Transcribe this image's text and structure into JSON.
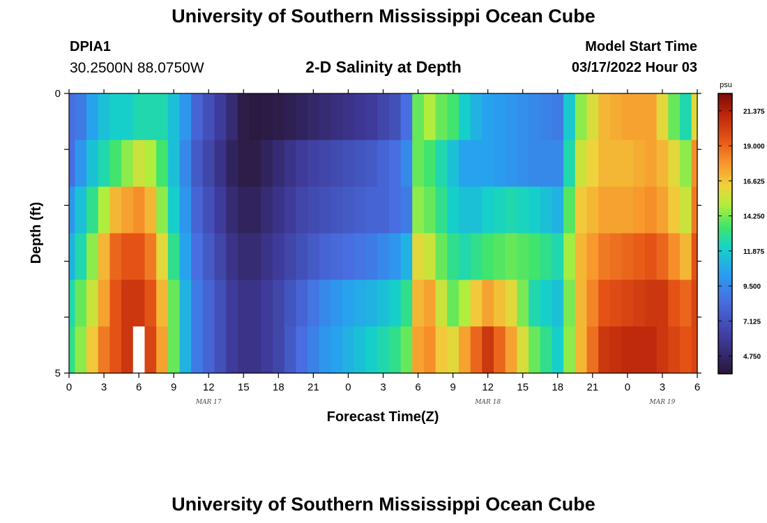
{
  "header": {
    "title": "University of Southern Mississippi Ocean Cube",
    "station_id": "DPIA1",
    "coordinates": "30.2500N  88.0750W",
    "chart_title": "2-D Salinity at Depth",
    "model_start_label": "Model Start Time",
    "model_start_value": "03/17/2022 Hour 03"
  },
  "footer": {
    "title": "University of Southern Mississippi Ocean Cube"
  },
  "chart_data": {
    "type": "heatmap",
    "title": "2-D Salinity at Depth",
    "xlabel": "Forecast Time(Z)",
    "ylabel": "Depth (ft)",
    "x_start_hour": 0,
    "x_end_hour": 54,
    "x_ticks": [
      "0",
      "3",
      "6",
      "9",
      "12",
      "15",
      "18",
      "21",
      "0",
      "3",
      "6",
      "9",
      "12",
      "15",
      "18",
      "21",
      "0",
      "3",
      "6"
    ],
    "date_labels": [
      {
        "label": "MAR 17",
        "hour": 12
      },
      {
        "label": "MAR 18",
        "hour": 36
      },
      {
        "label": "MAR 19",
        "hour": 51
      }
    ],
    "y_ticks": [
      "0",
      "5"
    ],
    "ylim": [
      0,
      5
    ],
    "depth_rows": [
      0,
      1,
      2,
      3,
      4,
      5
    ],
    "colorbar": {
      "unit": "psu",
      "min": 3.55,
      "max": 22.55,
      "ticks": [
        "21.375",
        "19.000",
        "16.625",
        "14.250",
        "11.875",
        "9.500",
        "7.125",
        "4.750"
      ]
    },
    "missing_data": [
      {
        "hour": 6,
        "row": 5
      }
    ],
    "salinity_keyframes": {
      "hours": [
        0,
        1,
        2,
        3,
        4,
        5,
        6,
        7,
        8,
        9,
        10,
        11,
        12,
        13,
        14,
        15,
        16,
        18,
        20,
        22,
        24,
        26,
        27,
        28,
        29,
        30,
        31,
        32,
        33,
        34,
        35,
        36,
        38,
        40,
        42,
        44,
        46,
        48,
        50,
        51,
        52,
        53,
        54
      ],
      "rows": [
        [
          8.5,
          9,
          10.5,
          11.5,
          12,
          12,
          12.5,
          12.5,
          12.5,
          11.5,
          10,
          8,
          7,
          6,
          5,
          4,
          3.8,
          4,
          4.5,
          5,
          5.5,
          6,
          6.5,
          7,
          8.5,
          14,
          15,
          14,
          13.5,
          12,
          11,
          10.5,
          10,
          9.5,
          9,
          14.5,
          17,
          17.5,
          17.5,
          16,
          14,
          12.5,
          16
        ],
        [
          8.5,
          10,
          11.5,
          12.5,
          13.5,
          14.5,
          15.5,
          15,
          13.5,
          11.5,
          9.5,
          7.5,
          6.5,
          5.5,
          4.5,
          4,
          4,
          5,
          6,
          6.5,
          7,
          7.5,
          8,
          8.5,
          9.5,
          14,
          13.5,
          12.5,
          11.5,
          10.5,
          10.5,
          10.5,
          10,
          9.5,
          9.5,
          15.5,
          17,
          17,
          17.5,
          17,
          16,
          14.5,
          18
        ],
        [
          10,
          11.5,
          13,
          15,
          17,
          17.5,
          18,
          17,
          14.5,
          12,
          10,
          8,
          7,
          6,
          5,
          4.5,
          4.5,
          5.5,
          6.5,
          7,
          7.5,
          8,
          8,
          8.5,
          9,
          14.5,
          14,
          13,
          12,
          11.5,
          11.5,
          12,
          12.5,
          12,
          11,
          16.5,
          17.5,
          17.5,
          18,
          17.5,
          16.5,
          15.5,
          18.5
        ],
        [
          11,
          12.5,
          14.5,
          17,
          19,
          19.5,
          19.5,
          18.5,
          16,
          13,
          10.5,
          8.5,
          7.5,
          6.5,
          5.5,
          5,
          5,
          6,
          7,
          8,
          8.5,
          9,
          9.5,
          10,
          11,
          16,
          15.5,
          14,
          13,
          12.5,
          13,
          13.5,
          14,
          13.5,
          12.5,
          17,
          18.5,
          19,
          19.5,
          19,
          18,
          17,
          19.5
        ],
        [
          12.5,
          14,
          15.5,
          17.5,
          19.5,
          20.5,
          20.5,
          19.5,
          17,
          14,
          11,
          9,
          8,
          7,
          6,
          5.5,
          5.5,
          6.5,
          8,
          9.5,
          10.5,
          11,
          11.5,
          12,
          13,
          17,
          17.5,
          15.5,
          14,
          15,
          16.5,
          17.5,
          16,
          12.5,
          11.5,
          17,
          19.5,
          20,
          20.5,
          20.5,
          19.5,
          19,
          20
        ],
        [
          13,
          14.5,
          16.5,
          18.5,
          19.5,
          20.5,
          21,
          20,
          17.5,
          14,
          11,
          9,
          8,
          7,
          6,
          5.5,
          5.5,
          6.5,
          8.5,
          10,
          11,
          12,
          12.5,
          13,
          14,
          17.5,
          18,
          16.5,
          16,
          17.5,
          19,
          20.5,
          17.5,
          14,
          12,
          17,
          20.5,
          21,
          21,
          20.5,
          20,
          19.5,
          20
        ]
      ]
    }
  }
}
